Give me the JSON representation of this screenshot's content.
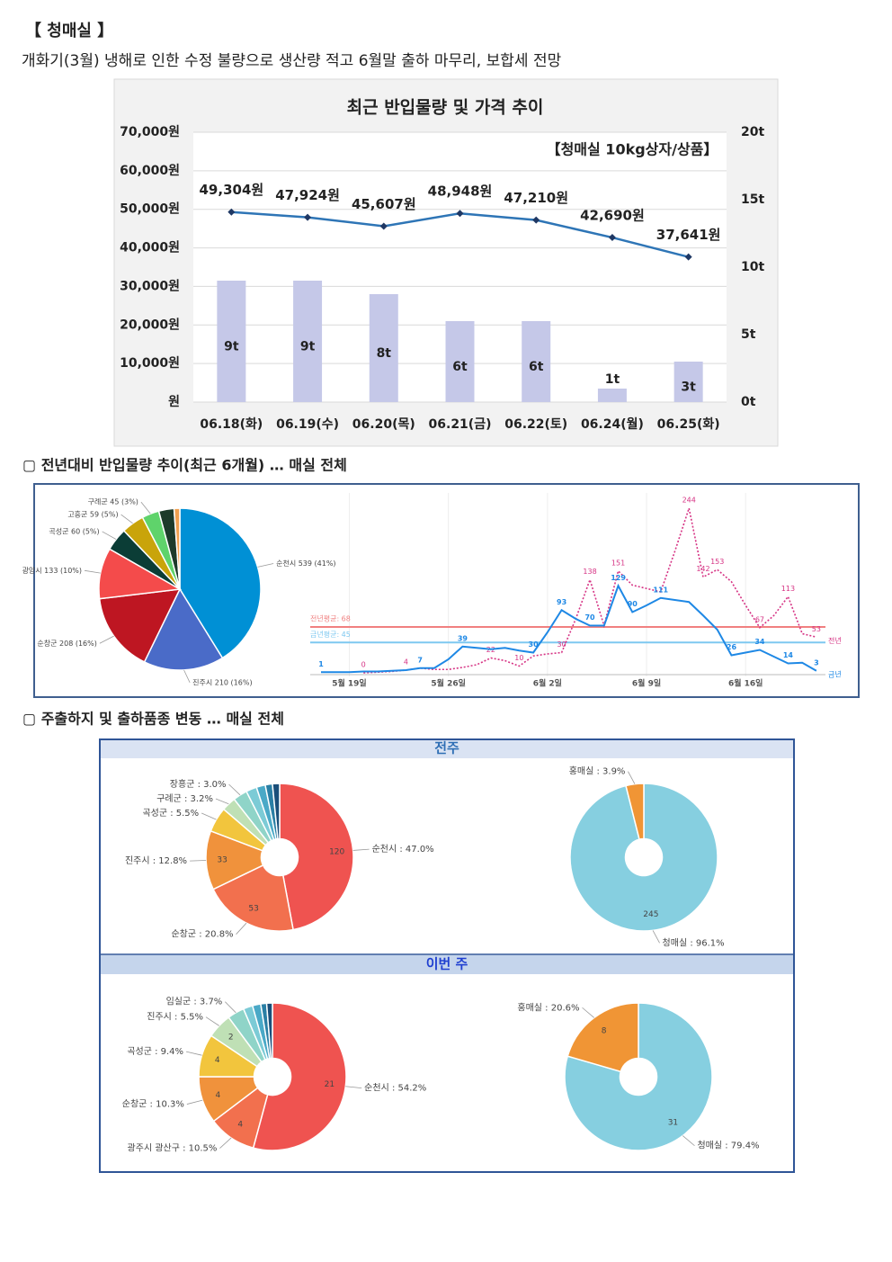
{
  "heading": "【 청매실 】",
  "summary": "개화기(3월) 냉해로 인한 수정 불량으로 생산량 적고 6월말 출하 마무리, 보합세 전망",
  "sections": [
    "▢ 전년대비 반입물량 추이(최근 6개월) … 매실 전체",
    "▢ 주출하지 및 출하품종 변동 … 매실 전체"
  ],
  "panels": [
    "전주",
    "이번 주"
  ],
  "chart_data": [
    {
      "type": "combo",
      "title": "최근 반입물량 및 가격 추이",
      "annotation": "【청매실 10kg상자/상품】",
      "categories": [
        "06.18(화)",
        "06.19(수)",
        "06.20(목)",
        "06.21(금)",
        "06.22(토)",
        "06.24(월)",
        "06.25(화)"
      ],
      "series": [
        {
          "type": "bar",
          "axis": "y2",
          "color": "#c5c8e8",
          "values": [
            9,
            9,
            8,
            6,
            6,
            1,
            3
          ],
          "value_labels": [
            "9t",
            "9t",
            "8t",
            "6t",
            "6t",
            "1t",
            "3t"
          ]
        },
        {
          "type": "line",
          "color": "#2e75b6",
          "values": [
            49304,
            47924,
            45607,
            48948,
            47210,
            42690,
            37641
          ],
          "value_labels": [
            "49,304원",
            "47,924원",
            "45,607원",
            "48,948원",
            "47,210원",
            "42,690원",
            "37,641원"
          ]
        }
      ],
      "ylim": [
        0,
        70000
      ],
      "yticks": [
        {
          "value": 0,
          "label": "원"
        },
        {
          "value": 10000,
          "label": "10,000원"
        },
        {
          "value": 20000,
          "label": "20,000원"
        },
        {
          "value": 30000,
          "label": "30,000원"
        },
        {
          "value": 40000,
          "label": "40,000원"
        },
        {
          "value": 50000,
          "label": "50,000원"
        },
        {
          "value": 60000,
          "label": "60,000원"
        },
        {
          "value": 70000,
          "label": "70,000원"
        }
      ],
      "y2lim": [
        0,
        20
      ],
      "y2ticks": [
        {
          "value": 0,
          "label": "0t"
        },
        {
          "value": 5,
          "label": "5t"
        },
        {
          "value": 10,
          "label": "10t"
        },
        {
          "value": 15,
          "label": "15t"
        },
        {
          "value": 20,
          "label": "20t"
        }
      ],
      "grid": true
    },
    {
      "type": "pie",
      "categories": [
        "순천시 539 (41%)",
        "진주시 210 (16%)",
        "순창군 208 (16%)",
        "광양시 133 (10%)",
        "곡성군 60 (5%)",
        "고흥군 59 (5%)",
        "구례군 45 (3%)",
        null,
        null
      ],
      "values": [
        539,
        210,
        208,
        133,
        60,
        59,
        45,
        40,
        15
      ],
      "colors": [
        "#0090d5",
        "#4a6bc8",
        "#be1622",
        "#f44b4b",
        "#0b3d36",
        "#c9a40a",
        "#5fd36b",
        "#1d3a2a",
        "#f0a050"
      ]
    },
    {
      "type": "line",
      "categories": [
        null,
        null,
        "5월 19일",
        null,
        null,
        null,
        null,
        null,
        null,
        "5월 26일",
        null,
        null,
        null,
        null,
        null,
        null,
        "6월 2일",
        null,
        null,
        null,
        null,
        null,
        null,
        "6월 9일",
        null,
        null,
        null,
        null,
        null,
        null,
        "6월 16일",
        null,
        null,
        null,
        null,
        null
      ],
      "series": [
        {
          "name": "전년",
          "color": "#d63384",
          "dashed": true,
          "values": [
            null,
            null,
            null,
            0,
            1,
            2,
            4,
            7,
            5,
            5,
            8,
            12,
            22,
            18,
            10,
            25,
            28,
            30,
            80,
            138,
            70,
            151,
            130,
            125,
            120,
            180,
            244,
            142,
            153,
            135,
            100,
            67,
            85,
            113,
            58,
            53
          ],
          "value_labels": [
            null,
            null,
            null,
            "0",
            null,
            null,
            "4",
            "7",
            null,
            null,
            null,
            null,
            "22",
            null,
            "10",
            null,
            null,
            "30",
            null,
            "138",
            null,
            "151",
            null,
            null,
            null,
            null,
            "244",
            "142",
            "153",
            null,
            null,
            "67",
            null,
            "113",
            null,
            "53"
          ]
        },
        {
          "name": "금년",
          "color": "#1e88e5",
          "dashed": false,
          "values": [
            1,
            1,
            1,
            2,
            2,
            3,
            4,
            7,
            7,
            20,
            39,
            37,
            35,
            37,
            33,
            30,
            60,
            93,
            80,
            70,
            70,
            129,
            90,
            100,
            111,
            108,
            105,
            85,
            64,
            26,
            30,
            34,
            24,
            14,
            15,
            3
          ],
          "value_labels": [
            "1",
            null,
            null,
            null,
            null,
            null,
            null,
            "7",
            null,
            null,
            "39",
            null,
            null,
            null,
            null,
            "30",
            null,
            "93",
            null,
            "70",
            null,
            "129",
            "90",
            null,
            "111",
            null,
            null,
            null,
            null,
            "26",
            null,
            "34",
            null,
            "14",
            null,
            "3"
          ]
        }
      ],
      "reference_lines": [
        {
          "label": "전년평균: 68",
          "value": 68,
          "color": "#f08080"
        },
        {
          "label": "금년평균: 45",
          "value": 45,
          "color": "#7ec8f0"
        }
      ],
      "ylim": [
        0,
        260
      ]
    },
    {
      "type": "pie",
      "donut": true,
      "categories": [
        "순천시 : 47.0%",
        "순창군 : 20.8%",
        "진주시 : 12.8%",
        "곡성군 : 5.5%",
        "구례군 : 3.2%",
        "장흥군 : 3.0%",
        null,
        null,
        null,
        null
      ],
      "values": [
        120,
        53,
        33,
        14,
        8,
        8,
        6,
        5,
        4,
        4
      ],
      "value_labels": [
        "120",
        "53",
        "33",
        null,
        null,
        null,
        null,
        null,
        null,
        null
      ],
      "colors": [
        "#ef5350",
        "#f2704e",
        "#f0923c",
        "#f2c53d",
        "#bfe0b5",
        "#8fd4c8",
        "#7ccbd6",
        "#4aa9c7",
        "#2a7fa5",
        "#1a4f7a"
      ]
    },
    {
      "type": "pie",
      "donut": true,
      "categories": [
        "청매실 : 96.1%",
        "홍매실 : 3.9%"
      ],
      "values": [
        245,
        10
      ],
      "value_labels": [
        "245",
        null
      ],
      "colors": [
        "#86cfe0",
        "#f09535"
      ]
    },
    {
      "type": "pie",
      "donut": true,
      "categories": [
        "순천시 : 54.2%",
        "광주시 광산구 : 10.5%",
        "순창군 : 10.3%",
        "곡성군 : 9.4%",
        "진주시 : 5.5%",
        "임실군 : 3.7%",
        null,
        null,
        null,
        null
      ],
      "values": [
        21,
        4.07,
        3.99,
        3.64,
        2.13,
        1.43,
        0.8,
        0.7,
        0.5,
        0.49
      ],
      "value_labels": [
        "21",
        "4",
        "4",
        "4",
        "2",
        null,
        null,
        null,
        null,
        null
      ],
      "colors": [
        "#ef5350",
        "#f2704e",
        "#f0923c",
        "#f2c53d",
        "#bfe0b5",
        "#8fd4c8",
        "#7ccbd6",
        "#4aa9c7",
        "#2a7fa5",
        "#1a4f7a"
      ]
    },
    {
      "type": "pie",
      "donut": true,
      "categories": [
        "청매실 : 79.4%",
        "홍매실 : 20.6%"
      ],
      "values": [
        31,
        8
      ],
      "value_labels": [
        "31",
        "8"
      ],
      "colors": [
        "#86cfe0",
        "#f09535"
      ]
    }
  ]
}
